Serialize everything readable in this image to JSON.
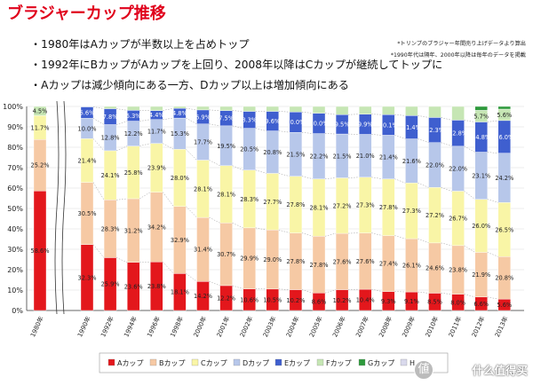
{
  "title": "ブラジャーカップ推移",
  "notes": [
    "*トリンプのブラジャー年間売り上げデータより算出",
    "*1990年代は隔年、2000年以降は毎年のデータを掲載"
  ],
  "bullets": [
    "・1980年はAカップが半数以上を占めトップ",
    "・1992年にBカップがAカップを上回り、2008年以降はCカップが継続してトップに",
    "・Aカップは減少傾向にある一方、Dカップ以上は増加傾向にある"
  ],
  "watermark": "什么值得买",
  "chart_data": {
    "type": "bar",
    "stacked": true,
    "categories": [
      "1980年",
      "1990年",
      "1992年",
      "1994年",
      "1996年",
      "1998年",
      "2000年",
      "2001年",
      "2002年",
      "2003年",
      "2004年",
      "2005年",
      "2006年",
      "2007年",
      "2008年",
      "2009年",
      "2010年",
      "2011年",
      "2012年",
      "2013年"
    ],
    "ylim": [
      0,
      100
    ],
    "yticks": [
      "0%",
      "10%",
      "20%",
      "30%",
      "40%",
      "50%",
      "60%",
      "70%",
      "80%",
      "90%",
      "100%"
    ],
    "axis_break_after": "1980年",
    "legend_position": "bottom",
    "series": [
      {
        "name": "Aカップ",
        "color": "#e3171c",
        "values": [
          58.6,
          32.3,
          25.9,
          23.6,
          23.8,
          18.1,
          14.2,
          12.2,
          10.6,
          10.5,
          10.2,
          8.6,
          10.2,
          10.4,
          9.3,
          9.1,
          8.5,
          8.0,
          6.6,
          5.6
        ],
        "labels": [
          "58.6%",
          "32.3%",
          "25.9%",
          "23.6%",
          "23.8%",
          "18.1%",
          "14.2%",
          "12.2%",
          "10.6%",
          "10.5%",
          "10.2%",
          "8.6%",
          "10.2%",
          "10.4%",
          "9.3%",
          "9.1%",
          "8.5%",
          "8.0%",
          "6.6%",
          "5.6%"
        ]
      },
      {
        "name": "Bカップ",
        "color": "#f6c9a4",
        "values": [
          25.2,
          30.5,
          28.3,
          31.2,
          34.2,
          32.9,
          31.4,
          30.7,
          29.9,
          29.0,
          27.8,
          27.8,
          27.6,
          27.6,
          27.4,
          26.1,
          24.6,
          23.8,
          21.9,
          20.8
        ],
        "labels": [
          "25.2%",
          "30.5%",
          "28.3%",
          "31.2%",
          "34.2%",
          "32.9%",
          "31.4%",
          "30.7%",
          "29.9%",
          "29.0%",
          "27.8%",
          "27.8%",
          "27.6%",
          "27.6%",
          "27.4%",
          "26.1%",
          "24.6%",
          "23.8%",
          "21.9%",
          "20.8%"
        ]
      },
      {
        "name": "Cカップ",
        "color": "#f9f5a6",
        "values": [
          11.7,
          21.4,
          24.1,
          25.8,
          23.9,
          28.0,
          28.1,
          28.1,
          28.3,
          27.7,
          27.8,
          28.1,
          27.2,
          27.3,
          27.8,
          27.3,
          27.2,
          26.7,
          26.0,
          26.5
        ],
        "labels": [
          "11.7%",
          "21.4%",
          "24.1%",
          "25.8%",
          "23.9%",
          "28.0%",
          "28.1%",
          "28.1%",
          "28.3%",
          "27.7%",
          "27.8%",
          "28.1%",
          "27.2%",
          "27.3%",
          "27.8%",
          "27.3%",
          "27.2%",
          "26.7%",
          "26.0%",
          "26.5%"
        ]
      },
      {
        "name": "Dカップ",
        "color": "#b7c7ea",
        "values": [
          0,
          10.0,
          12.8,
          12.2,
          11.7,
          15.3,
          17.7,
          19.5,
          20.5,
          20.8,
          21.5,
          22.2,
          21.5,
          21.0,
          21.4,
          21.6,
          22.0,
          22.0,
          23.1,
          24.2
        ],
        "labels": [
          "",
          "10.0%",
          "12.8%",
          "12.2%",
          "11.7%",
          "15.3%",
          "17.7%",
          "19.5%",
          "20.5%",
          "20.8%",
          "21.5%",
          "22.2%",
          "21.5%",
          "21.0%",
          "21.4%",
          "21.6%",
          "22.0%",
          "22.0%",
          "23.1%",
          "24.2%"
        ]
      },
      {
        "name": "Eカップ",
        "color": "#3f5fcf",
        "values": [
          0,
          5.6,
          7.8,
          5.3,
          4.4,
          4.8,
          6.9,
          7.5,
          8.3,
          9.6,
          10.0,
          10.0,
          9.5,
          9.9,
          10.1,
          11.4,
          12.3,
          12.8,
          14.8,
          16.0
        ],
        "labels": [
          "",
          "5.6%",
          "7.8%",
          "5.3%",
          "4.4%",
          "4.8%",
          "6.9%",
          "7.5%",
          "8.3%",
          "9.6%",
          "10.0%",
          "10.0%",
          "9.5%",
          "9.9%",
          "10.1%",
          "11.4%",
          "12.3%",
          "12.8%",
          "14.8%",
          "16.0%"
        ]
      },
      {
        "name": "Fカップ",
        "color": "#c6e6b4",
        "values": [
          4.5,
          0.2,
          1.1,
          1.9,
          2.0,
          0.9,
          1.7,
          2.0,
          2.4,
          2.4,
          2.7,
          3.3,
          4.0,
          3.8,
          4.0,
          4.5,
          5.4,
          6.7,
          5.7,
          5.6
        ],
        "labels": [
          "4.5%",
          "",
          "",
          "",
          "",
          "",
          "",
          "",
          "",
          "",
          "",
          "",
          "",
          "",
          "",
          "",
          "",
          "",
          "5.7%",
          "5.6%"
        ]
      },
      {
        "name": "Gカップ",
        "color": "#2e9a3c",
        "values": [
          0,
          0,
          0,
          0,
          0,
          0,
          0,
          0,
          0,
          0,
          0,
          0,
          0,
          0,
          0,
          0,
          0,
          0,
          1.9,
          1.3
        ],
        "labels": []
      },
      {
        "name": "H...",
        "color": "#d9d9ec",
        "values": [
          0,
          0,
          0,
          0,
          0,
          0,
          0,
          0,
          0,
          0,
          0,
          0,
          0,
          0,
          0,
          0,
          0,
          0,
          0,
          0
        ],
        "labels": []
      }
    ]
  }
}
